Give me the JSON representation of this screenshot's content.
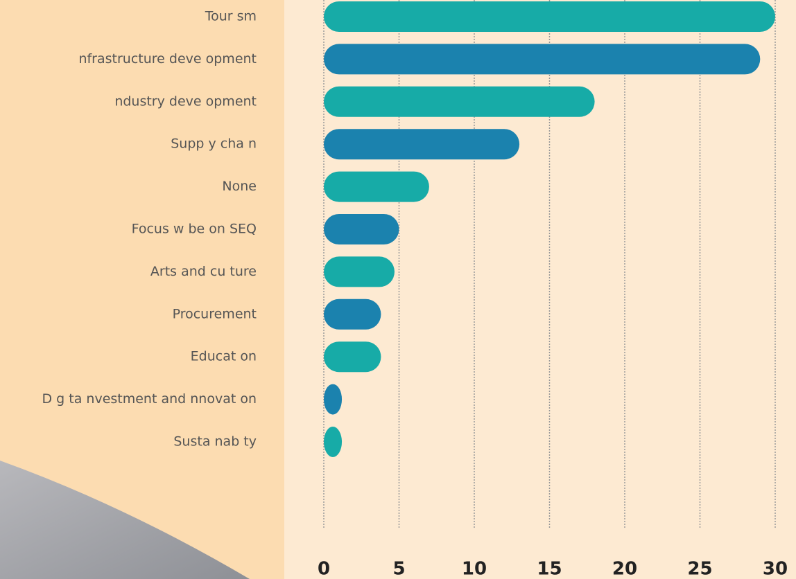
{
  "chart_data": {
    "type": "bar",
    "orientation": "horizontal",
    "categories": [
      "Tour sm",
      "nfrastructure deve opment",
      "ndustry deve opment",
      "Supp y cha n",
      "None",
      "Focus w   be on SEQ",
      "Arts and cu ture",
      "Procurement",
      "Educat on",
      "D g ta  nvestment and  nnovat on",
      "Susta nab  ty"
    ],
    "values": [
      30,
      29,
      18,
      13,
      7,
      5,
      4.7,
      3.8,
      3.8,
      1.2,
      1.2
    ],
    "colors": [
      "#17aba7",
      "#1b82ae",
      "#17aba7",
      "#1b82ae",
      "#17aba7",
      "#1b82ae",
      "#17aba7",
      "#1b82ae",
      "#17aba7",
      "#1b82ae",
      "#17aba7"
    ],
    "xlim": [
      0,
      30
    ],
    "xticks": [
      0,
      5,
      10,
      15,
      20,
      25,
      30
    ],
    "grid": true
  }
}
